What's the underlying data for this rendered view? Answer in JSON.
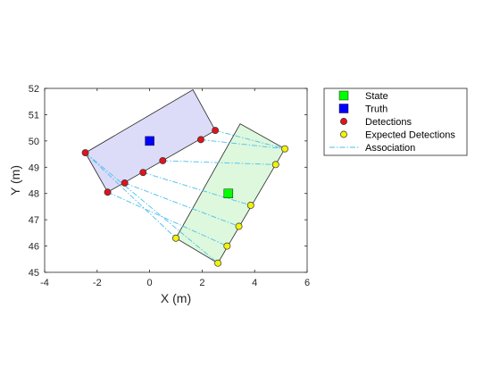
{
  "chart_data": {
    "type": "scatter",
    "xlabel": "X (m)",
    "ylabel": "Y (m)",
    "xlim": [
      -4,
      6
    ],
    "ylim": [
      45,
      52
    ],
    "xticks": [
      "-4",
      "-2",
      "0",
      "2",
      "4",
      "6"
    ],
    "yticks": [
      "45",
      "46",
      "47",
      "48",
      "49",
      "50",
      "51",
      "52"
    ],
    "grid": false,
    "legend_position": "outside-top-right",
    "regions": [
      {
        "role": "truth-box",
        "fill": "#dcdcf8",
        "edge": "#262626",
        "corners": [
          [
            -2.45,
            49.55
          ],
          [
            1.65,
            51.95
          ],
          [
            2.5,
            50.4
          ],
          [
            -1.6,
            48.05
          ]
        ]
      },
      {
        "role": "state-box",
        "fill": "#ddf8dd",
        "edge": "#262626",
        "corners": [
          [
            1.0,
            46.3
          ],
          [
            3.45,
            50.65
          ],
          [
            5.15,
            49.7
          ],
          [
            2.6,
            45.35
          ]
        ]
      }
    ],
    "series": [
      {
        "name": "State",
        "marker": "square",
        "color": "#00ff00",
        "points": [
          [
            3.0,
            48.0
          ]
        ]
      },
      {
        "name": "Truth",
        "marker": "square",
        "color": "#0000ff",
        "points": [
          [
            0.0,
            50.0
          ]
        ]
      },
      {
        "name": "Detections",
        "marker": "circle",
        "color": "#e0141a",
        "points": [
          [
            -2.45,
            49.55
          ],
          [
            -1.6,
            48.05
          ],
          [
            -0.95,
            48.4
          ],
          [
            -0.25,
            48.8
          ],
          [
            0.5,
            49.25
          ],
          [
            1.95,
            50.05
          ],
          [
            2.5,
            50.4
          ]
        ]
      },
      {
        "name": "Expected Detections",
        "marker": "circle",
        "color": "#f2f20a",
        "points": [
          [
            1.0,
            46.3
          ],
          [
            2.6,
            45.35
          ],
          [
            2.95,
            46.0
          ],
          [
            3.4,
            46.75
          ],
          [
            3.85,
            47.55
          ],
          [
            4.8,
            49.1
          ],
          [
            5.15,
            49.7
          ]
        ]
      },
      {
        "name": "Association",
        "marker": "none",
        "line": "dash-dot",
        "color": "#4dbeee",
        "segments": [
          [
            [
              -2.45,
              49.55
            ],
            [
              1.0,
              46.3
            ]
          ],
          [
            [
              -2.45,
              49.55
            ],
            [
              2.6,
              45.35
            ]
          ],
          [
            [
              -1.6,
              48.05
            ],
            [
              2.95,
              46.0
            ]
          ],
          [
            [
              -0.95,
              48.4
            ],
            [
              3.4,
              46.75
            ]
          ],
          [
            [
              -0.25,
              48.8
            ],
            [
              3.85,
              47.55
            ]
          ],
          [
            [
              0.5,
              49.25
            ],
            [
              4.8,
              49.1
            ]
          ],
          [
            [
              1.95,
              50.05
            ],
            [
              5.15,
              49.7
            ]
          ],
          [
            [
              2.5,
              50.4
            ],
            [
              5.15,
              49.7
            ]
          ]
        ]
      }
    ]
  }
}
